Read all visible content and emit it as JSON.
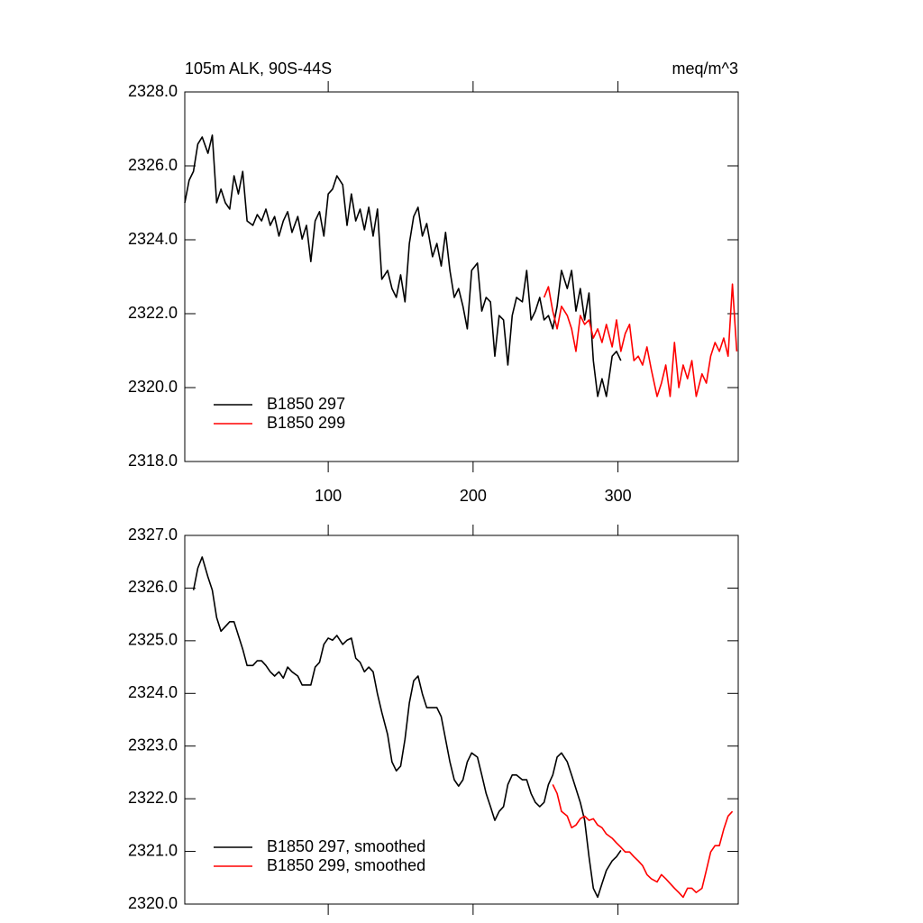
{
  "chart_data": [
    {
      "type": "line",
      "title": "105m ALK, 90S-44S",
      "units": "meq/m^3",
      "x": [
        1,
        4,
        7,
        10,
        13,
        17,
        20,
        23,
        26,
        29,
        32,
        35,
        38,
        41,
        44,
        48,
        51,
        54,
        57,
        60,
        63,
        66,
        69,
        72,
        75,
        79,
        82,
        85,
        88,
        91,
        94,
        97,
        100,
        103,
        106,
        110,
        113,
        116,
        119,
        122,
        125,
        128,
        131,
        134,
        137,
        141,
        144,
        147,
        150,
        153,
        156,
        159,
        162,
        165,
        168,
        172,
        175,
        178,
        181,
        184,
        187,
        190,
        193,
        196,
        199,
        203,
        206,
        209,
        212,
        215,
        218,
        221,
        224,
        227,
        230,
        234,
        237,
        240,
        243,
        246,
        249,
        252,
        255,
        258,
        261,
        265,
        268,
        271,
        274,
        277,
        280,
        283,
        286,
        289,
        292,
        296,
        299,
        302,
        305,
        308,
        311,
        314,
        317,
        320,
        323,
        327,
        330,
        333,
        336,
        339,
        342,
        345,
        348,
        351,
        354,
        358,
        361,
        364,
        367,
        370,
        373,
        376,
        379,
        382
      ],
      "xlim": [
        1,
        383
      ],
      "xticks": [
        100,
        200,
        300
      ],
      "xticklabels": true,
      "ylim": [
        2318,
        2328
      ],
      "yticks": [
        {
          "value": 2318,
          "label": "2318.0"
        },
        {
          "value": 2320,
          "label": "2320.0"
        },
        {
          "value": 2322,
          "label": "2322.0"
        },
        {
          "value": 2324,
          "label": "2324.0"
        },
        {
          "value": 2326,
          "label": "2326.0"
        },
        {
          "value": 2328,
          "label": "2328.0"
        }
      ],
      "legend": "lower left",
      "series": [
        {
          "name": "B1850 297",
          "color": "#000000",
          "values": [
            2325.0,
            2325.61,
            2325.85,
            2326.59,
            2326.78,
            2326.34,
            2326.83,
            2325.0,
            2325.37,
            2325.0,
            2324.83,
            2325.73,
            2325.24,
            2325.85,
            2324.51,
            2324.39,
            2324.68,
            2324.51,
            2324.83,
            2324.39,
            2324.63,
            2324.1,
            2324.51,
            2324.76,
            2324.2,
            2324.63,
            2324.02,
            2324.39,
            2323.41,
            2324.51,
            2324.76,
            2324.1,
            2325.24,
            2325.37,
            2325.73,
            2325.49,
            2324.39,
            2325.24,
            2324.51,
            2324.83,
            2324.27,
            2324.88,
            2324.1,
            2324.83,
            2322.93,
            2323.17,
            2322.68,
            2322.44,
            2323.05,
            2322.32,
            2323.9,
            2324.63,
            2324.88,
            2324.1,
            2324.44,
            2323.54,
            2323.9,
            2323.29,
            2324.2,
            2323.17,
            2322.44,
            2322.68,
            2322.2,
            2321.59,
            2323.17,
            2323.37,
            2322.07,
            2322.44,
            2322.32,
            2320.85,
            2321.95,
            2321.83,
            2320.61,
            2321.95,
            2322.44,
            2322.32,
            2323.17,
            2321.83,
            2322.07,
            2322.44,
            2321.83,
            2321.95,
            2321.59,
            2322.2,
            2323.17,
            2322.68,
            2323.17,
            2322.07,
            2322.68,
            2321.83,
            2322.56,
            2320.73,
            2319.76,
            2320.24,
            2319.76,
            2320.85,
            2320.98,
            2320.73,
            null,
            null,
            null,
            null,
            null,
            null,
            null,
            null,
            null,
            null,
            null,
            null,
            null,
            null,
            null,
            null,
            null,
            null,
            null,
            null,
            null,
            null,
            null,
            null,
            null,
            null
          ]
        },
        {
          "name": "B1850 299",
          "color": "#ff0000",
          "values": [
            null,
            null,
            null,
            null,
            null,
            null,
            null,
            null,
            null,
            null,
            null,
            null,
            null,
            null,
            null,
            null,
            null,
            null,
            null,
            null,
            null,
            null,
            null,
            null,
            null,
            null,
            null,
            null,
            null,
            null,
            null,
            null,
            null,
            null,
            null,
            null,
            null,
            null,
            null,
            null,
            null,
            null,
            null,
            null,
            null,
            null,
            null,
            null,
            null,
            null,
            null,
            null,
            null,
            null,
            null,
            null,
            null,
            null,
            null,
            null,
            null,
            null,
            null,
            null,
            null,
            null,
            null,
            null,
            null,
            null,
            null,
            null,
            null,
            null,
            null,
            null,
            null,
            null,
            null,
            null,
            2322.44,
            2322.73,
            2322.07,
            2321.59,
            2322.2,
            2321.95,
            2321.59,
            2320.98,
            2321.95,
            2321.71,
            2321.83,
            2321.34,
            2321.59,
            2321.22,
            2321.71,
            2321.1,
            2321.83,
            2320.98,
            2321.46,
            2321.71,
            2320.73,
            2320.85,
            2320.61,
            2321.1,
            2320.49,
            2319.76,
            2320.12,
            2320.61,
            2319.76,
            2321.22,
            2320.0,
            2320.61,
            2320.24,
            2320.73,
            2319.76,
            2320.37,
            2320.12,
            2320.85,
            2321.22,
            2320.98,
            2321.34,
            2320.85,
            2322.8,
            2320.98
          ]
        }
      ]
    },
    {
      "type": "line",
      "x": [
        1,
        4,
        7,
        10,
        13,
        17,
        20,
        23,
        26,
        29,
        32,
        35,
        38,
        41,
        44,
        48,
        51,
        54,
        57,
        60,
        63,
        66,
        69,
        72,
        75,
        79,
        82,
        85,
        88,
        91,
        94,
        97,
        100,
        103,
        106,
        110,
        113,
        116,
        119,
        122,
        125,
        128,
        131,
        134,
        137,
        141,
        144,
        147,
        150,
        153,
        156,
        159,
        162,
        165,
        168,
        172,
        175,
        178,
        181,
        184,
        187,
        190,
        193,
        196,
        199,
        203,
        206,
        209,
        212,
        215,
        218,
        221,
        224,
        227,
        230,
        234,
        237,
        240,
        243,
        246,
        249,
        252,
        255,
        258,
        261,
        265,
        268,
        271,
        274,
        277,
        280,
        283,
        286,
        289,
        292,
        296,
        299,
        302,
        305,
        308,
        311,
        314,
        317,
        320,
        323,
        327,
        330,
        333,
        336,
        339,
        342,
        345,
        348,
        351,
        354,
        358,
        361,
        364,
        367,
        370,
        373,
        376,
        379,
        382
      ],
      "xlim": [
        1,
        383
      ],
      "xticks": [
        100,
        200,
        300
      ],
      "xticklabels": false,
      "ylim": [
        2320,
        2327
      ],
      "yticks": [
        {
          "value": 2320,
          "label": "2320.0"
        },
        {
          "value": 2321,
          "label": "2321.0"
        },
        {
          "value": 2322,
          "label": "2322.0"
        },
        {
          "value": 2323,
          "label": "2323.0"
        },
        {
          "value": 2324,
          "label": "2324.0"
        },
        {
          "value": 2325,
          "label": "2325.0"
        },
        {
          "value": 2326,
          "label": "2326.0"
        },
        {
          "value": 2327,
          "label": "2327.0"
        }
      ],
      "legend": "lower left",
      "series": [
        {
          "name": "B1850 297, smoothed",
          "color": "#000000",
          "values": [
            null,
            null,
            2325.96,
            2326.38,
            2326.59,
            2326.21,
            2325.96,
            2325.44,
            2325.18,
            2325.27,
            2325.36,
            2325.36,
            2325.1,
            2324.84,
            2324.53,
            2324.53,
            2324.62,
            2324.62,
            2324.53,
            2324.41,
            2324.33,
            2324.41,
            2324.29,
            2324.5,
            2324.41,
            2324.33,
            2324.16,
            2324.16,
            2324.16,
            2324.5,
            2324.59,
            2324.93,
            2325.05,
            2325.01,
            2325.1,
            2324.93,
            2325.01,
            2325.05,
            2324.67,
            2324.59,
            2324.41,
            2324.5,
            2324.41,
            2323.99,
            2323.64,
            2323.22,
            2322.7,
            2322.53,
            2322.62,
            2323.13,
            2323.82,
            2324.24,
            2324.33,
            2323.99,
            2323.73,
            2323.73,
            2323.73,
            2323.56,
            2323.13,
            2322.7,
            2322.36,
            2322.24,
            2322.36,
            2322.7,
            2322.87,
            2322.79,
            2322.45,
            2322.1,
            2321.85,
            2321.59,
            2321.76,
            2321.85,
            2322.27,
            2322.45,
            2322.45,
            2322.36,
            2322.36,
            2322.1,
            2321.93,
            2321.85,
            2321.93,
            2322.27,
            2322.45,
            2322.79,
            2322.87,
            2322.7,
            2322.45,
            2322.19,
            2321.93,
            2321.59,
            2320.9,
            2320.3,
            2320.13,
            2320.39,
            2320.64,
            2320.82,
            2320.9,
            2321.02,
            null,
            null,
            null,
            null,
            null,
            null,
            null,
            null,
            null,
            null,
            null,
            null,
            null,
            null,
            null,
            null,
            null,
            null,
            null,
            null,
            null,
            null,
            null,
            null,
            null,
            null
          ]
        },
        {
          "name": "B1850 299, smoothed",
          "color": "#ff0000",
          "values": [
            null,
            null,
            null,
            null,
            null,
            null,
            null,
            null,
            null,
            null,
            null,
            null,
            null,
            null,
            null,
            null,
            null,
            null,
            null,
            null,
            null,
            null,
            null,
            null,
            null,
            null,
            null,
            null,
            null,
            null,
            null,
            null,
            null,
            null,
            null,
            null,
            null,
            null,
            null,
            null,
            null,
            null,
            null,
            null,
            null,
            null,
            null,
            null,
            null,
            null,
            null,
            null,
            null,
            null,
            null,
            null,
            null,
            null,
            null,
            null,
            null,
            null,
            null,
            null,
            null,
            null,
            null,
            null,
            null,
            null,
            null,
            null,
            null,
            null,
            null,
            null,
            null,
            null,
            null,
            null,
            null,
            null,
            2322.27,
            2322.1,
            2321.76,
            2321.67,
            2321.45,
            2321.5,
            2321.62,
            2321.67,
            2321.59,
            2321.62,
            2321.5,
            2321.45,
            2321.33,
            2321.25,
            2321.16,
            2321.08,
            2320.99,
            2320.99,
            2320.9,
            2320.82,
            2320.73,
            2320.56,
            2320.48,
            2320.42,
            2320.56,
            2320.48,
            2320.39,
            2320.3,
            2320.22,
            2320.13,
            2320.3,
            2320.3,
            2320.22,
            2320.3,
            2320.64,
            2320.99,
            2321.11,
            2321.11,
            2321.42,
            2321.67,
            2321.76,
            null
          ]
        }
      ]
    }
  ]
}
